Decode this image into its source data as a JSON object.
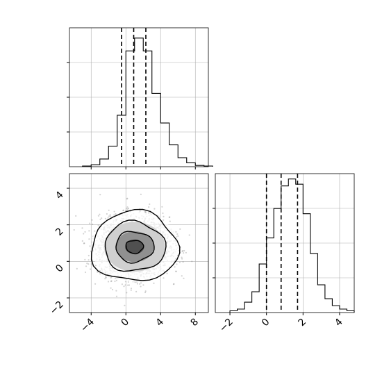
{
  "chart_data": [
    {
      "type": "histogram",
      "panel": "top-left",
      "variable": 1,
      "xlim": [
        -6.5,
        9.5
      ],
      "bins": [
        -4.0,
        -3.0,
        -2.0,
        -1.0,
        0.0,
        1.0,
        2.0,
        3.0,
        4.0,
        5.0,
        6.0,
        7.0,
        8.0,
        9.0
      ],
      "counts": [
        0.5,
        1.5,
        6,
        16,
        40,
        90,
        100,
        90,
        57,
        34,
        17,
        7,
        3,
        1,
        0.5
      ],
      "bin_edges": [
        -5.0,
        -4.0,
        -3.0,
        -2.0,
        -1.0,
        0.0,
        1.0,
        2.0,
        3.0,
        4.0,
        5.0,
        6.0,
        7.0,
        8.0,
        9.0,
        10.0
      ],
      "quantile_lines": [
        -0.5,
        0.9,
        2.3
      ],
      "grid": true,
      "y_tick_labels_shown": false
    },
    {
      "type": "histogram",
      "panel": "bottom-right",
      "variable": 2,
      "xlim": [
        -2.8,
        4.8
      ],
      "counts": [
        1,
        2,
        6,
        12,
        28,
        43,
        60,
        73,
        77,
        74,
        57,
        34,
        16,
        8,
        4,
        2,
        1
      ],
      "bin_edges": [
        -2.0,
        -1.6,
        -1.2,
        -0.8,
        -0.4,
        0.0,
        0.4,
        0.8,
        1.2,
        1.6,
        2.0,
        2.4,
        2.8,
        3.2,
        3.6,
        4.0,
        4.4,
        4.8
      ],
      "quantile_lines": [
        0.0,
        0.8,
        1.7
      ],
      "x_ticks": [
        "−2",
        "0",
        "2",
        "4"
      ],
      "grid": true,
      "y_tick_labels_shown": false
    },
    {
      "type": "scatter-contour",
      "panel": "bottom-left",
      "x_variable": 1,
      "y_variable": 2,
      "xlim": [
        -6.5,
        9.5
      ],
      "ylim": [
        -2.8,
        4.8
      ],
      "center": [
        1.0,
        0.8
      ],
      "spread": [
        2.0,
        0.8
      ],
      "point_count": 3000,
      "contour_levels": 3,
      "x_ticks": [
        "−4",
        "0",
        "4",
        "8"
      ],
      "y_ticks": [
        "−2",
        "0",
        "2",
        "4"
      ]
    }
  ],
  "labels": {
    "x_ticks": [
      "−4",
      "0",
      "4",
      "8"
    ],
    "y_ticks": [
      "−2",
      "0",
      "2",
      "4"
    ],
    "hist2_x_ticks": [
      "−2",
      "0",
      "2",
      "4"
    ]
  },
  "colors": {
    "line": "#000000",
    "grid": "#b0b0b0",
    "points": "#808080"
  }
}
